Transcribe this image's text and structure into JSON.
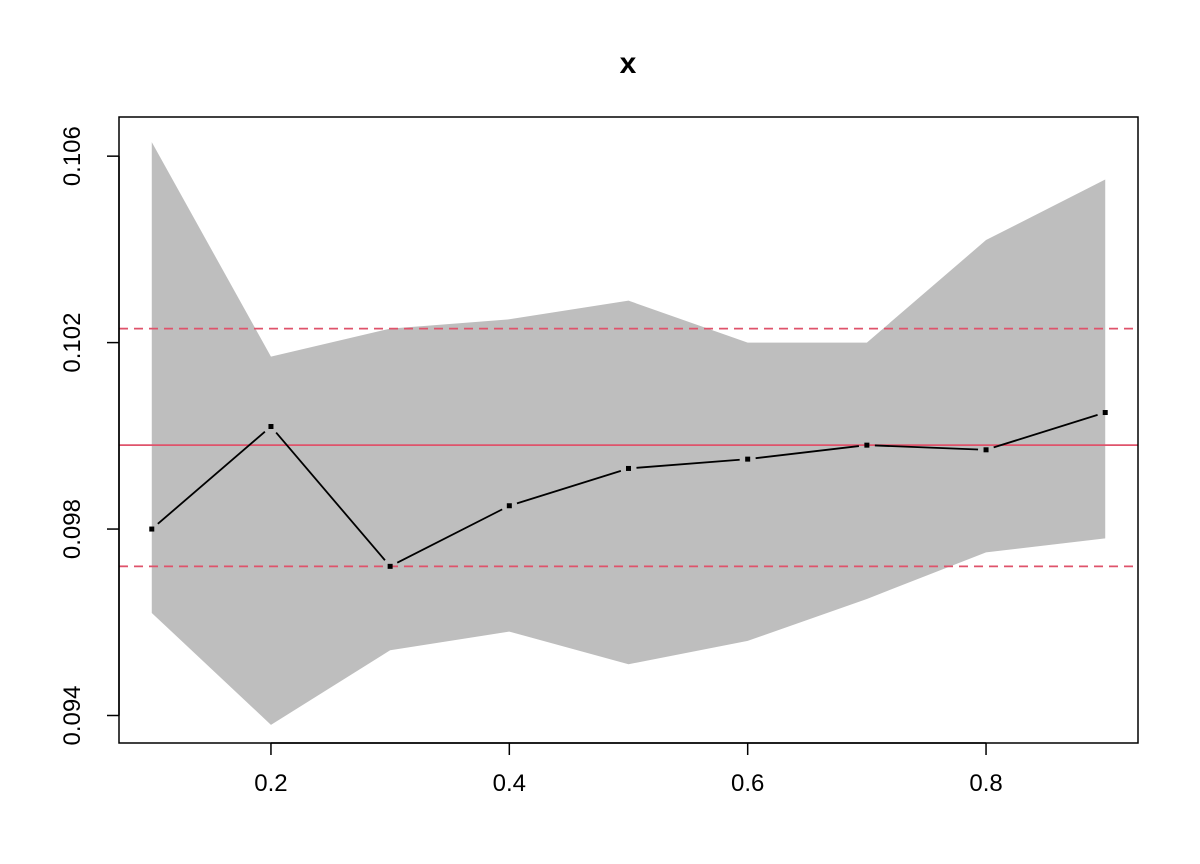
{
  "chart_data": {
    "type": "line",
    "title": "x",
    "xlabel": "",
    "ylabel": "",
    "xlim": [
      0.0725,
      0.9275
    ],
    "ylim": [
      0.09341,
      0.10684
    ],
    "x_ticks": [
      0.2,
      0.4,
      0.6,
      0.8
    ],
    "x_tick_labels": [
      "0.2",
      "0.4",
      "0.6",
      "0.8"
    ],
    "y_ticks": [
      0.094,
      0.098,
      0.102,
      0.106
    ],
    "y_tick_labels": [
      "0.094",
      "0.098",
      "0.102",
      "0.106"
    ],
    "grid": false,
    "series": [
      {
        "x": [
          0.1,
          0.2,
          0.3,
          0.4,
          0.5,
          0.6,
          0.7,
          0.8,
          0.9
        ],
        "y": [
          0.098,
          0.1002,
          0.0972,
          0.0985,
          0.0993,
          0.0995,
          0.0998,
          0.0997,
          0.1005
        ],
        "color": "#000000",
        "marker": "point"
      }
    ],
    "band": {
      "x": [
        0.1,
        0.2,
        0.3,
        0.4,
        0.5,
        0.6,
        0.7,
        0.8,
        0.9
      ],
      "upper": [
        0.1063,
        0.1017,
        0.1023,
        0.1025,
        0.1029,
        0.102,
        0.102,
        0.1042,
        0.1055
      ],
      "lower": [
        0.0962,
        0.0938,
        0.0954,
        0.0958,
        0.0951,
        0.0956,
        0.0965,
        0.0975,
        0.0978
      ],
      "color": "#bebebe"
    },
    "hlines": [
      {
        "y": 0.0998,
        "style": "solid",
        "color": "#df536b"
      },
      {
        "y": 0.1023,
        "style": "dashed",
        "color": "#df536b"
      },
      {
        "y": 0.0972,
        "style": "dashed",
        "color": "#df536b"
      }
    ]
  }
}
